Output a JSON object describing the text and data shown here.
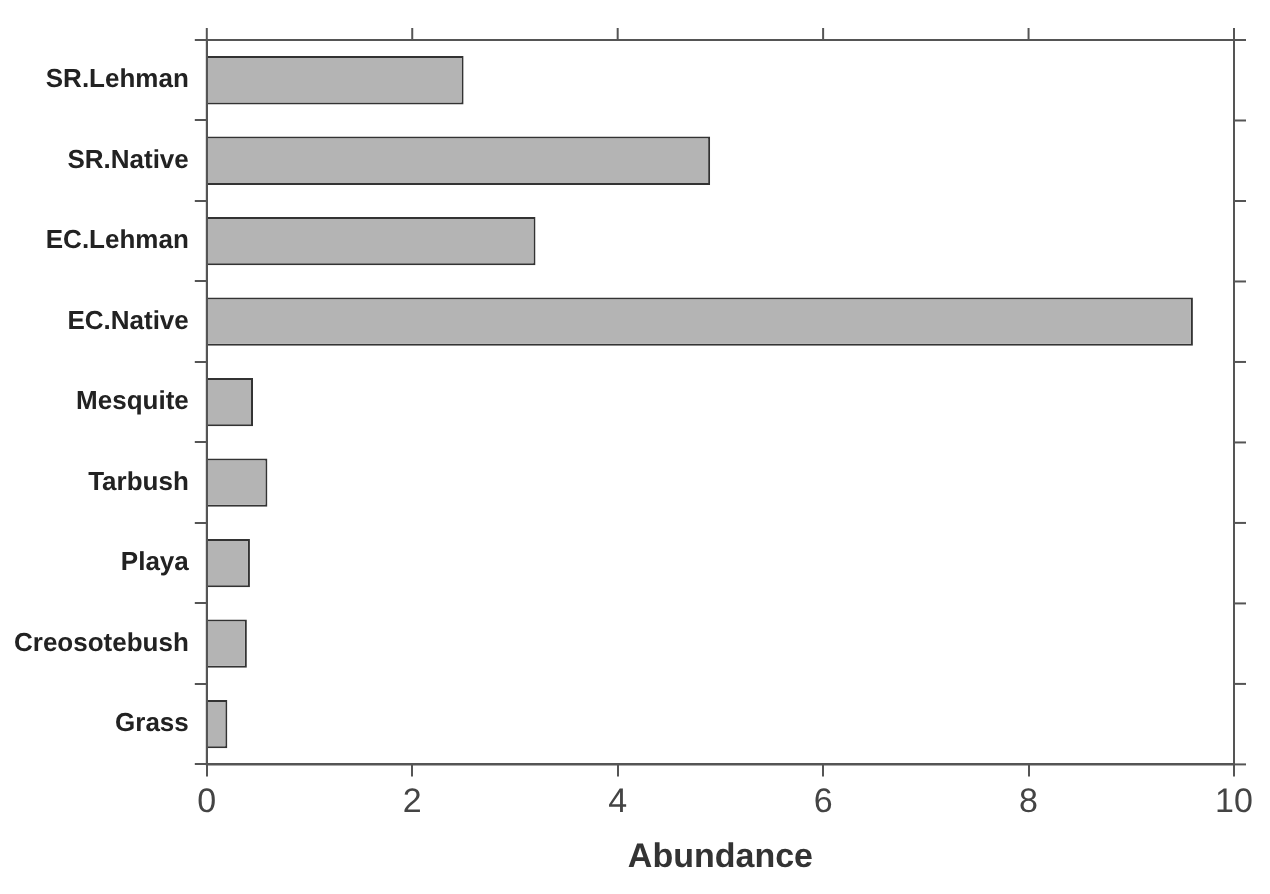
{
  "chart_data": {
    "type": "bar",
    "orientation": "horizontal",
    "xlabel": "Abundance",
    "categories": [
      "SR.Lehman",
      "SR.Native",
      "EC.Lehman",
      "EC.Native",
      "Mesquite",
      "Tarbush",
      "Playa",
      "Creosotebush",
      "Grass"
    ],
    "values": [
      2.5,
      4.9,
      3.2,
      9.6,
      0.45,
      0.59,
      0.42,
      0.39,
      0.2
    ],
    "color": "#b4b4b4",
    "xlim": [
      0,
      10
    ],
    "xticks": [
      0,
      2,
      4,
      6,
      8,
      10
    ],
    "grid": false,
    "legend": false
  }
}
